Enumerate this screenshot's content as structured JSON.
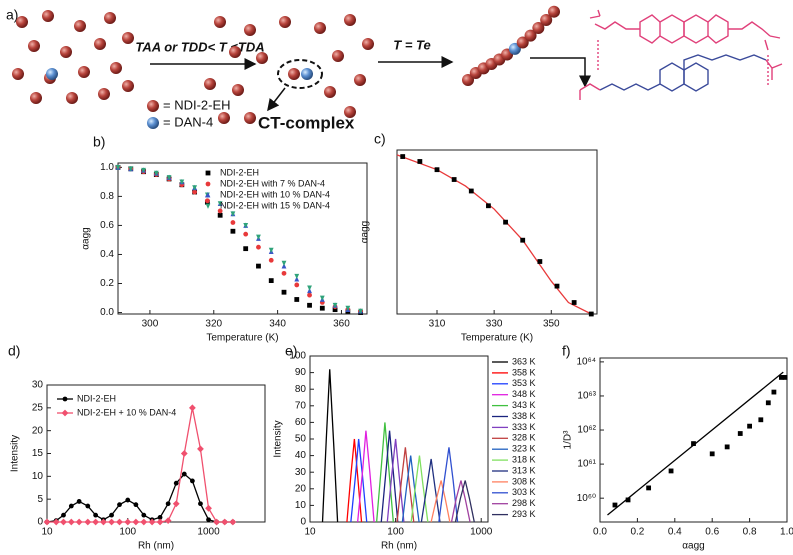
{
  "scheme": {
    "panel": "a)",
    "condition_1": "TAA or TDD< T <TDA",
    "condition_2": "T = Te",
    "legend_ndi": "= NDI-2-EH",
    "legend_dan": "= DAN-4",
    "complex": "CT-complex"
  },
  "chart_data": [
    {
      "type": "line",
      "panel": "b)",
      "x_label": "Temperature (K)",
      "y_label": "αagg",
      "x": [
        290,
        294,
        298,
        302,
        306,
        310,
        314,
        318,
        322,
        326,
        330,
        334,
        338,
        342,
        346,
        350,
        354,
        358,
        362,
        366
      ],
      "xlim": [
        290,
        368
      ],
      "xticks": [
        300,
        320,
        340,
        360
      ],
      "ylim": [
        -0.01,
        1.03
      ],
      "yticks": [
        {
          "value": 0,
          "label": "0.0"
        },
        {
          "value": 0.2,
          "label": "0.2"
        },
        {
          "value": 0.4,
          "label": "0.4"
        },
        {
          "value": 0.6,
          "label": "0.6"
        },
        {
          "value": 0.8,
          "label": "0.8"
        },
        {
          "value": 1,
          "label": "1.0"
        }
      ],
      "legend": "upper right",
      "series": [
        {
          "name": "NDI-2-EH",
          "color": "#000000",
          "marker": "square",
          "mode": "markers",
          "values": [
            1.0,
            0.99,
            0.97,
            0.95,
            0.92,
            0.88,
            0.83,
            0.76,
            0.67,
            0.56,
            0.44,
            0.32,
            0.22,
            0.14,
            0.09,
            0.05,
            0.03,
            0.02,
            0.01,
            0.0
          ]
        },
        {
          "name": "NDI-2-EH with 7 % DAN-4",
          "color": "#e8393a",
          "marker": "circle",
          "mode": "markers",
          "values": [
            1.0,
            0.99,
            0.97,
            0.95,
            0.92,
            0.88,
            0.83,
            0.77,
            0.7,
            0.62,
            0.54,
            0.45,
            0.36,
            0.27,
            0.19,
            0.12,
            0.07,
            0.04,
            0.02,
            0.01
          ]
        },
        {
          "name": "NDI-2-EH with 10 % DAN-4",
          "color": "#3a56c8",
          "marker": "triangle",
          "mode": "markers",
          "values": [
            1.0,
            0.99,
            0.98,
            0.96,
            0.93,
            0.9,
            0.86,
            0.81,
            0.75,
            0.68,
            0.6,
            0.51,
            0.42,
            0.32,
            0.23,
            0.15,
            0.09,
            0.05,
            0.02,
            0.01
          ]
        },
        {
          "name": "NDI-2-EH with 15 % DAN-4",
          "color": "#2fa37a",
          "marker": "triangle-down",
          "mode": "markers",
          "values": [
            1.0,
            0.99,
            0.98,
            0.96,
            0.93,
            0.9,
            0.86,
            0.81,
            0.75,
            0.68,
            0.6,
            0.52,
            0.43,
            0.34,
            0.25,
            0.17,
            0.1,
            0.05,
            0.03,
            0.01
          ]
        }
      ]
    },
    {
      "type": "line",
      "panel": "c)",
      "x_label": "Temperature (K)",
      "y_label": "αagg",
      "xlim": [
        296,
        366
      ],
      "xticks": [
        310,
        330,
        350
      ],
      "ylim": [
        0,
        1
      ],
      "series": [
        {
          "color": "#000000",
          "marker": "square",
          "mode": "markers",
          "x": [
            298,
            304,
            310,
            316,
            322,
            328,
            334,
            340,
            346,
            352,
            358,
            364
          ],
          "values": [
            0.96,
            0.93,
            0.88,
            0.82,
            0.75,
            0.66,
            0.56,
            0.45,
            0.32,
            0.17,
            0.07,
            0.0
          ]
        },
        {
          "color": "#e8393a",
          "mode": "lines",
          "x": [
            296,
            310,
            320,
            330,
            340,
            350,
            356,
            364
          ],
          "values": [
            0.97,
            0.88,
            0.78,
            0.64,
            0.45,
            0.2,
            0.07,
            0.0
          ]
        }
      ]
    },
    {
      "type": "line",
      "panel": "d)",
      "x_label": "Rh (nm)",
      "y_label": "Intensity",
      "xscale": "log",
      "x": [
        10,
        13,
        16,
        20,
        25,
        32,
        40,
        50,
        63,
        79,
        100,
        126,
        158,
        200,
        251,
        316,
        398,
        501,
        631,
        794,
        1000,
        1259,
        1585,
        2000
      ],
      "xlim": [
        10,
        5000
      ],
      "xticks": [
        10,
        100,
        1000
      ],
      "ylim": [
        0,
        30
      ],
      "yticks": [
        0,
        5,
        10,
        15,
        20,
        25,
        30
      ],
      "legend": "upper left",
      "series": [
        {
          "name": "NDI-2-EH",
          "color": "#000000",
          "marker": "circle",
          "mode": "lines+markers",
          "values": [
            0,
            0.3,
            1.5,
            3.5,
            4.5,
            3.5,
            1.5,
            0.5,
            1.5,
            3.8,
            4.8,
            3.8,
            1.5,
            0.5,
            1,
            4,
            8.5,
            10.5,
            9,
            4,
            0.5,
            0,
            0,
            0
          ]
        },
        {
          "name": "NDI-2-EH + 10 % DAN-4",
          "color": "#f0506e",
          "marker": "diamond",
          "mode": "lines+markers",
          "values": [
            0,
            0,
            0,
            0,
            0,
            0,
            0,
            0,
            0,
            0,
            0,
            0,
            0,
            0,
            0,
            0.3,
            4,
            15,
            25,
            16,
            3,
            0,
            0,
            0
          ]
        }
      ]
    },
    {
      "type": "line",
      "panel": "e)",
      "x_label": "Rh (nm)",
      "y_label": "Intensity",
      "xscale": "log",
      "xlim": [
        10,
        1200
      ],
      "xticks": [
        10,
        100,
        1000
      ],
      "ylim": [
        0,
        100
      ],
      "yticks": [
        0,
        10,
        20,
        30,
        40,
        50,
        60,
        70,
        80,
        90,
        100
      ],
      "legend": "right",
      "series": [
        {
          "name": "363 K",
          "color": "#000000",
          "mode": "lines",
          "x": [
            14,
            15.5,
            17,
            19,
            21
          ],
          "values": [
            0,
            50,
            92,
            45,
            0
          ]
        },
        {
          "name": "358 K",
          "color": "#ff0000",
          "mode": "lines",
          "x": [
            27,
            30,
            33,
            36,
            40
          ],
          "values": [
            0,
            28,
            50,
            28,
            0
          ]
        },
        {
          "name": "353 K",
          "color": "#1f3fff",
          "mode": "lines",
          "x": [
            30,
            34,
            37,
            41,
            46
          ],
          "values": [
            0,
            28,
            50,
            28,
            0
          ]
        },
        {
          "name": "348 K",
          "color": "#e020e0",
          "mode": "lines",
          "x": [
            36,
            41,
            45,
            50,
            56
          ],
          "values": [
            0,
            30,
            55,
            30,
            0
          ]
        },
        {
          "name": "343 K",
          "color": "#40c040",
          "mode": "lines",
          "x": [
            60,
            68,
            75,
            83,
            94
          ],
          "values": [
            0,
            33,
            60,
            33,
            0
          ]
        },
        {
          "name": "338 K",
          "color": "#1a237e",
          "mode": "lines",
          "x": [
            68,
            77,
            85,
            94,
            106
          ],
          "values": [
            0,
            30,
            55,
            30,
            0
          ]
        },
        {
          "name": "333 K",
          "color": "#8040c0",
          "mode": "lines",
          "x": [
            80,
            90,
            100,
            110,
            125
          ],
          "values": [
            0,
            28,
            50,
            28,
            0
          ]
        },
        {
          "name": "328 K",
          "color": "#c04040",
          "mode": "lines",
          "x": [
            104,
            117,
            130,
            143,
            163
          ],
          "values": [
            0,
            25,
            45,
            25,
            0
          ]
        },
        {
          "name": "323 K",
          "color": "#2060c0",
          "mode": "lines",
          "x": [
            120,
            135,
            150,
            165,
            188
          ],
          "values": [
            0,
            22,
            40,
            22,
            0
          ]
        },
        {
          "name": "318 K",
          "color": "#80e060",
          "mode": "lines",
          "x": [
            152,
            171,
            190,
            209,
            238
          ],
          "values": [
            0,
            22,
            40,
            22,
            0
          ]
        },
        {
          "name": "313 K",
          "color": "#203080",
          "mode": "lines",
          "x": [
            200,
            230,
            260,
            290,
            330
          ],
          "values": [
            0,
            20,
            38,
            20,
            0
          ]
        },
        {
          "name": "308 K",
          "color": "#ff8060",
          "mode": "lines",
          "x": [
            260,
            300,
            340,
            380,
            430
          ],
          "values": [
            0,
            14,
            25,
            14,
            0
          ]
        },
        {
          "name": "303 K",
          "color": "#3050d0",
          "mode": "lines",
          "x": [
            320,
            370,
            420,
            470,
            530
          ],
          "values": [
            0,
            25,
            45,
            25,
            0
          ]
        },
        {
          "name": "298 K",
          "color": "#a040a0",
          "mode": "lines",
          "x": [
            450,
            510,
            580,
            650,
            740
          ],
          "values": [
            0,
            14,
            25,
            14,
            0
          ]
        },
        {
          "name": "293 K",
          "color": "#303060",
          "mode": "lines",
          "x": [
            500,
            570,
            650,
            730,
            830
          ],
          "values": [
            0,
            14,
            25,
            14,
            0
          ]
        }
      ]
    },
    {
      "type": "line",
      "panel": "f)",
      "x_label": "αagg",
      "y_label": "1/D³",
      "yscale": "log",
      "xlim": [
        0,
        1
      ],
      "xticks": [
        {
          "value": 0,
          "label": "0.0"
        },
        {
          "value": 0.2,
          "label": "0.2"
        },
        {
          "value": 0.4,
          "label": "0.4"
        },
        {
          "value": 0.6,
          "label": "0.6"
        },
        {
          "value": 0.8,
          "label": "0.8"
        },
        {
          "value": 1,
          "label": "1.0"
        }
      ],
      "ylim": [
        2e+59,
        1.3e+64
      ],
      "yticks": [
        {
          "value": 1e+60,
          "label": "10⁶⁰"
        },
        {
          "value": 1e+61,
          "label": "10⁶¹"
        },
        {
          "value": 1e+62,
          "label": "10⁶²"
        },
        {
          "value": 1e+63,
          "label": "10⁶³"
        },
        {
          "value": 1e+64,
          "label": "10⁶⁴"
        }
      ],
      "series": [
        {
          "color": "#000000",
          "marker": "square",
          "mode": "markers",
          "x": [
            0.08,
            0.15,
            0.26,
            0.38,
            0.5,
            0.6,
            0.68,
            0.75,
            0.8,
            0.86,
            0.9,
            0.93,
            0.97,
            0.99
          ],
          "values": [
            6.3e+59,
            8.9e+59,
            2e+60,
            6.3e+60,
            4e+61,
            2e+61,
            3.2e+61,
            7.9e+61,
            1.3e+62,
            2e+62,
            6.3e+62,
            1.3e+63,
            3.5e+63,
            3.5e+63
          ]
        },
        {
          "color": "#000000",
          "mode": "lines",
          "x": [
            0.04,
            0.98
          ],
          "values": [
            3.2e+59,
            5e+63
          ]
        }
      ]
    }
  ]
}
